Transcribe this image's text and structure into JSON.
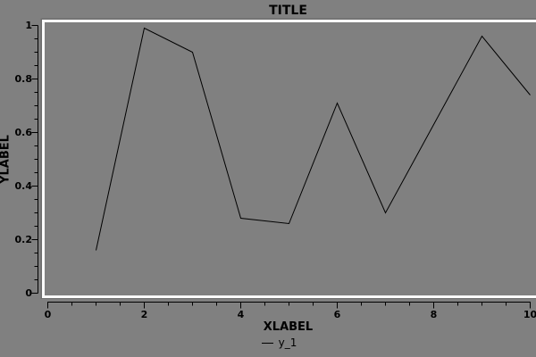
{
  "figure": {
    "background_color": "#808080",
    "frame_color": "#fbfbfb",
    "frame_shadow_color": "#6e6e6e",
    "axis_color": "#000000"
  },
  "chart_data": {
    "type": "line",
    "title": "TITLE",
    "xlabel": "XLABEL",
    "ylabel": "YLABEL",
    "legend_position": "bottom-center",
    "grid": false,
    "xlim": [
      0,
      10
    ],
    "ylim": [
      0,
      1
    ],
    "x_major_ticks": [
      0,
      2,
      4,
      6,
      8,
      10
    ],
    "x_tick_labels": [
      "0",
      "2",
      "4",
      "6",
      "8",
      "10"
    ],
    "x_minor_step": 0.5,
    "y_major_ticks": [
      0,
      0.2,
      0.4,
      0.6,
      0.8,
      1
    ],
    "y_tick_labels": [
      "0",
      "0.2",
      "0.4",
      "0.6",
      "0.8",
      "1"
    ],
    "y_minor_step": 0.05,
    "x": [
      1,
      2,
      3,
      4,
      5,
      6,
      7,
      8,
      9,
      10
    ],
    "series": [
      {
        "name": "y_1",
        "color": "#000000",
        "values": [
          0.16,
          0.99,
          0.9,
          0.28,
          0.26,
          0.71,
          0.3,
          0.63,
          0.96,
          0.74
        ]
      }
    ]
  }
}
